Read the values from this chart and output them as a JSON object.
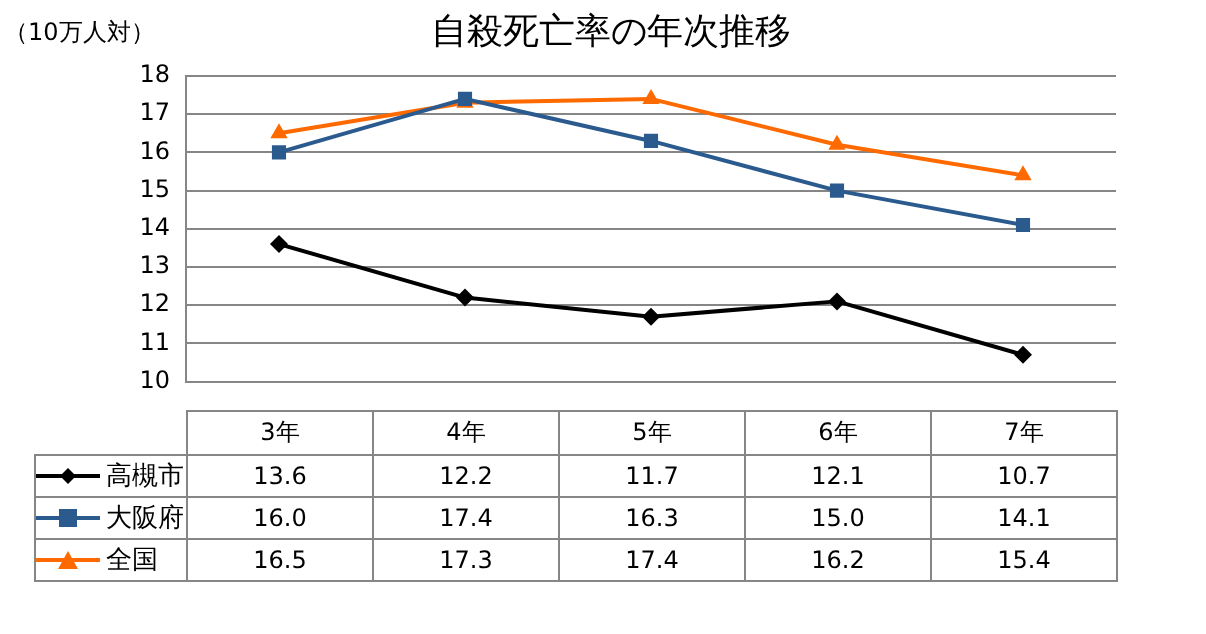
{
  "chart_data": {
    "type": "line",
    "title": "自殺死亡率の年次推移",
    "ylabel": "（10万人対）",
    "categories": [
      "3年",
      "4年",
      "5年",
      "6年",
      "7年"
    ],
    "series": [
      {
        "name": "高槻市",
        "color": "#000000",
        "marker": "diamond",
        "values": [
          13.6,
          12.2,
          11.7,
          12.1,
          10.7
        ],
        "value_labels": [
          "13.6",
          "12.2",
          "11.7",
          "12.1",
          "10.7"
        ]
      },
      {
        "name": "大阪府",
        "color": "#2b5b8e",
        "marker": "square",
        "values": [
          16.0,
          17.4,
          16.3,
          15.0,
          14.1
        ],
        "value_labels": [
          "16.0",
          "17.4",
          "16.3",
          "15.0",
          "14.1"
        ]
      },
      {
        "name": "全国",
        "color": "#ff6a00",
        "marker": "triangle",
        "values": [
          16.5,
          17.3,
          17.4,
          16.2,
          15.4
        ],
        "value_labels": [
          "16.5",
          "17.3",
          "17.4",
          "16.2",
          "15.4"
        ]
      }
    ],
    "ylim": [
      10,
      18
    ],
    "yticks": [
      10,
      11,
      12,
      13,
      14,
      15,
      16,
      17,
      18
    ],
    "grid": "y",
    "legend": "bottom"
  }
}
